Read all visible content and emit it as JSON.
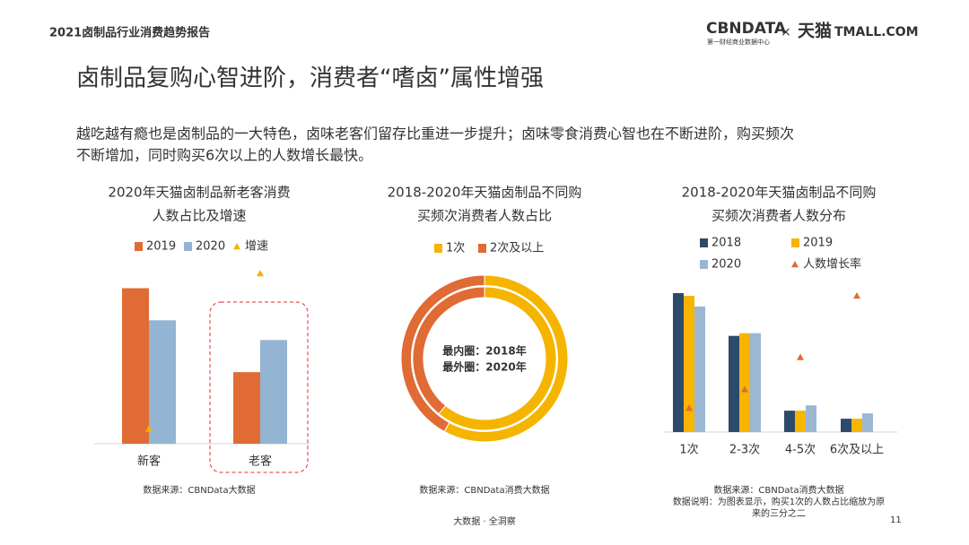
{
  "header": {
    "report": "2021卤制品行业消费趋势报告",
    "logo": "CBNDATA",
    "logo_sub": "第一财经商业数据中心",
    "times": "×",
    "partner": "天猫",
    "partner_en": "TMALL.COM"
  },
  "title": "卤制品复购心智进阶，消费者“嗜卤”属性增强",
  "description": [
    "越吃越有瘾也是卤制品的一大特色，卤味老客们留存比重进一步提升；卤味零食消费心智也在不断进阶，购买频次",
    "不断增加，同时购买6次以上的人数增长最快。"
  ],
  "chart_data": [
    {
      "type": "bar",
      "title": [
        "2020年天猫卤制品新老客消费",
        "人数占比及增速"
      ],
      "categories": [
        "新客",
        "老客"
      ],
      "series": [
        {
          "name": "2019",
          "color": "#e06b35",
          "values": [
            63,
            29
          ]
        },
        {
          "name": "2020",
          "color": "#94b4d4",
          "values": [
            50,
            42
          ]
        },
        {
          "name": "增速",
          "color": "#f5b400",
          "marker": "triangle",
          "values": [
            6,
            69
          ]
        }
      ],
      "source": [
        "数据来源：CBNData大数据"
      ]
    },
    {
      "type": "donut",
      "title": [
        "2018-2020年天猫卤制品不同购",
        "买频次消费者人数占比"
      ],
      "rings": [
        "最内圈：2018年",
        "最外圈：2020年"
      ],
      "series": [
        {
          "name": "1次",
          "color": "#f5b400",
          "values": [
            61,
            58
          ]
        },
        {
          "name": "2次及以上",
          "color": "#e06b35",
          "values": [
            39,
            42
          ]
        }
      ],
      "source": [
        "数据来源：CBNData消费大数据"
      ]
    },
    {
      "type": "bar",
      "title": [
        "2018-2020年天猫卤制品不同购",
        "买频次消费者人数分布"
      ],
      "categories": [
        "1次",
        "2-3次",
        "4-5次",
        "6次及以上"
      ],
      "series": [
        {
          "name": "2018",
          "color": "#2e4a6b",
          "values": [
            52,
            36,
            8,
            5
          ]
        },
        {
          "name": "2019",
          "color": "#f7b500",
          "values": [
            51,
            37,
            8,
            5
          ]
        },
        {
          "name": "2020",
          "color": "#9bb7d4",
          "values": [
            47,
            37,
            10,
            7
          ]
        },
        {
          "name": "人数增长率",
          "color": "#e06b35",
          "marker": "triangle",
          "values": [
            9,
            16,
            28,
            51
          ]
        }
      ],
      "source": [
        "数据来源：CBNData消费大数据",
        "数据说明：为图表显示，购买1次的人数占比缩放为原",
        "来的三分之二"
      ]
    }
  ],
  "footer": {
    "slogan": "大数据 · 全洞察",
    "page": "11"
  }
}
